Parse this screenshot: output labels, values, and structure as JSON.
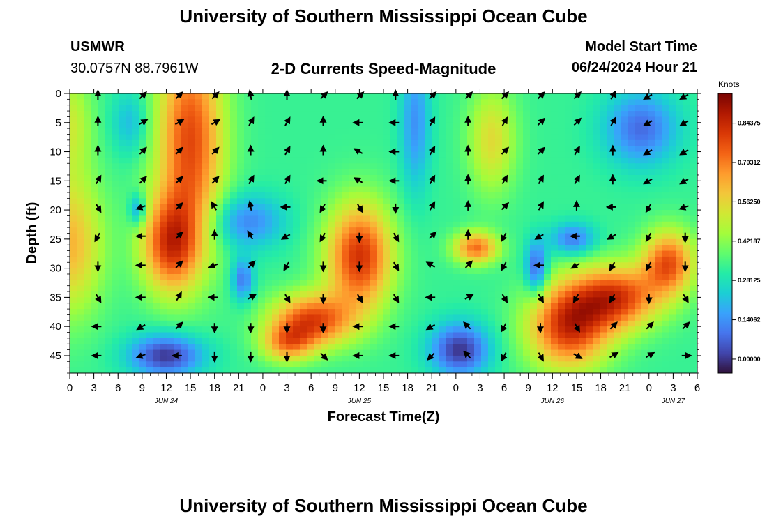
{
  "page": {
    "title_top": "University of Southern Mississippi Ocean Cube",
    "title_bottom": "University of Southern Mississippi Ocean Cube",
    "station_id": "USMWR",
    "coordinates": "30.0757N  88.7961W",
    "product_title": "2-D Currents Speed-Magnitude",
    "model_start_label": "Model Start Time",
    "model_start_value": "06/24/2024 Hour 21"
  },
  "chart_data": {
    "type": "heatmap",
    "title": "2-D Currents Speed-Magnitude",
    "xlabel": "Forecast Time(Z)",
    "ylabel": "Depth (ft)",
    "x_tick_labels": [
      "0",
      "3",
      "6",
      "9",
      "12",
      "15",
      "18",
      "21",
      "0",
      "3",
      "6",
      "9",
      "12",
      "15",
      "18",
      "21",
      "0",
      "3",
      "6",
      "9",
      "12",
      "15",
      "18",
      "21",
      "0",
      "3",
      "6"
    ],
    "date_labels": [
      {
        "label": "JUN 24",
        "tick_index": 4
      },
      {
        "label": "JUN 25",
        "tick_index": 12
      },
      {
        "label": "JUN 26",
        "tick_index": 20
      },
      {
        "label": "JUN 27",
        "tick_index": 25
      }
    ],
    "xlim_hours": [
      0,
      78
    ],
    "y_ticks": [
      0,
      5,
      10,
      15,
      20,
      25,
      30,
      35,
      40,
      45
    ],
    "ylim_ft": [
      0,
      48
    ],
    "colorbar": {
      "label": "Knots",
      "ticks": [
        "0.00000",
        "0.14062",
        "0.28125",
        "0.42187",
        "0.56250",
        "0.70312",
        "0.84375"
      ],
      "range": [
        -0.05,
        0.95
      ],
      "colors": [
        "#30123b",
        "#4145ab",
        "#4675ed",
        "#39a2fc",
        "#1bcfd4",
        "#24eca6",
        "#61fc6c",
        "#a4fc3b",
        "#d1e834",
        "#f3c63a",
        "#fe9b2d",
        "#f36315",
        "#d93806",
        "#b11901",
        "#7a0402"
      ]
    },
    "speed_hotspots_knots": [
      {
        "hour": 0,
        "depth_ft": 26,
        "speed": 0.62,
        "rx_h": 4.5,
        "ry_ft": 13
      },
      {
        "hour": 0,
        "depth_ft": 5,
        "speed": 0.5,
        "rx_h": 3,
        "ry_ft": 10
      },
      {
        "hour": 15,
        "depth_ft": 8,
        "speed": 0.78,
        "rx_h": 4.5,
        "ry_ft": 20
      },
      {
        "hour": 12.5,
        "depth_ft": 26,
        "speed": 0.75,
        "rx_h": 4,
        "ry_ft": 9
      },
      {
        "hour": 36,
        "depth_ft": 28,
        "speed": 0.82,
        "rx_h": 4.5,
        "ry_ft": 10
      },
      {
        "hour": 30,
        "depth_ft": 39,
        "speed": 0.78,
        "rx_h": 5.5,
        "ry_ft": 5
      },
      {
        "hour": 27,
        "depth_ft": 43,
        "speed": 0.62,
        "rx_h": 3.5,
        "ry_ft": 3.5
      },
      {
        "hour": 50.5,
        "depth_ft": 26.5,
        "speed": 0.72,
        "rx_h": 3,
        "ry_ft": 3
      },
      {
        "hour": 52.5,
        "depth_ft": 8,
        "speed": 0.55,
        "rx_h": 3.2,
        "ry_ft": 10
      },
      {
        "hour": 62,
        "depth_ft": 40,
        "speed": 0.82,
        "rx_h": 5.5,
        "ry_ft": 8
      },
      {
        "hour": 68,
        "depth_ft": 35,
        "speed": 0.78,
        "rx_h": 6,
        "ry_ft": 6
      },
      {
        "hour": 74.5,
        "depth_ft": 29,
        "speed": 0.75,
        "rx_h": 3.5,
        "ry_ft": 6
      },
      {
        "hour": 8.5,
        "depth_ft": 20,
        "speed": 0.12,
        "rx_h": 1.2,
        "ry_ft": 3
      },
      {
        "hour": 7.5,
        "depth_ft": 5,
        "speed": 0.2,
        "rx_h": 2.5,
        "ry_ft": 6
      },
      {
        "hour": 12,
        "depth_ft": 45,
        "speed": 0.0,
        "rx_h": 5,
        "ry_ft": 4
      },
      {
        "hour": 22,
        "depth_ft": 22,
        "speed": 0.12,
        "rx_h": 5,
        "ry_ft": 5
      },
      {
        "hour": 21.5,
        "depth_ft": 32,
        "speed": 0.1,
        "rx_h": 1.5,
        "ry_ft": 4
      },
      {
        "hour": 43,
        "depth_ft": 5,
        "speed": 0.14,
        "rx_h": 2,
        "ry_ft": 13
      },
      {
        "hour": 48.5,
        "depth_ft": 44,
        "speed": 0.0,
        "rx_h": 4,
        "ry_ft": 5
      },
      {
        "hour": 58,
        "depth_ft": 30,
        "speed": 0.05,
        "rx_h": 1.5,
        "ry_ft": 5
      },
      {
        "hour": 62.5,
        "depth_ft": 25,
        "speed": 0.1,
        "rx_h": 3,
        "ry_ft": 3
      },
      {
        "hour": 71,
        "depth_ft": 6,
        "speed": 0.08,
        "rx_h": 5,
        "ry_ft": 7
      }
    ],
    "vector_rows_depth_ft": [
      0,
      5,
      10,
      15,
      19.5,
      24.5,
      29.5,
      35,
      40,
      45
    ],
    "vector_cols_hour": [
      3.5,
      9,
      13.5,
      18,
      22.5,
      27,
      31.5,
      36,
      40.5,
      45,
      49.5,
      54,
      58.5,
      63,
      67.5,
      72,
      76.5
    ],
    "vector_angles_deg": [
      [
        90,
        45,
        45,
        45,
        100,
        90,
        45,
        45,
        90,
        45,
        45,
        45,
        45,
        45,
        60,
        210,
        210
      ],
      [
        90,
        30,
        30,
        30,
        60,
        60,
        90,
        180,
        180,
        60,
        90,
        60,
        45,
        45,
        60,
        210,
        210
      ],
      [
        90,
        45,
        45,
        45,
        90,
        60,
        90,
        150,
        180,
        60,
        90,
        45,
        45,
        60,
        90,
        210,
        210
      ],
      [
        60,
        45,
        45,
        45,
        60,
        60,
        180,
        150,
        180,
        60,
        90,
        60,
        60,
        60,
        90,
        210,
        210
      ],
      [
        300,
        200,
        45,
        120,
        100,
        180,
        240,
        300,
        270,
        60,
        90,
        45,
        60,
        90,
        180,
        240,
        200
      ],
      [
        240,
        180,
        45,
        90,
        120,
        210,
        240,
        270,
        300,
        45,
        90,
        240,
        210,
        180,
        210,
        240,
        270
      ],
      [
        270,
        180,
        45,
        200,
        45,
        240,
        270,
        270,
        300,
        150,
        45,
        240,
        180,
        210,
        240,
        240,
        270
      ],
      [
        300,
        180,
        60,
        180,
        30,
        300,
        270,
        300,
        300,
        180,
        30,
        300,
        300,
        240,
        240,
        270,
        300
      ],
      [
        180,
        210,
        45,
        270,
        270,
        270,
        270,
        180,
        180,
        210,
        135,
        240,
        270,
        300,
        45,
        45,
        45
      ],
      [
        180,
        200,
        180,
        270,
        270,
        270,
        315,
        180,
        180,
        225,
        135,
        240,
        300,
        330,
        30,
        30,
        0
      ]
    ]
  }
}
